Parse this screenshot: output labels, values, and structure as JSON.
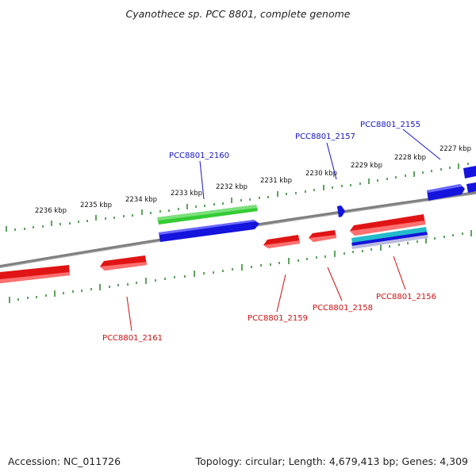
{
  "title": "Cyanothece sp. PCC 8801, complete genome",
  "footer": {
    "accession": "Accession: NC_011726",
    "summary": "Topology: circular; Length: 4,679,413 bp; Genes: 4,309"
  },
  "ruler": {
    "kbp_labels": [
      "2227 kbp",
      "2228 kbp",
      "2229 kbp",
      "2230 kbp",
      "2231 kbp",
      "2232 kbp",
      "2233 kbp",
      "2234 kbp",
      "2235 kbp",
      "2236 kbp"
    ]
  },
  "gene_labels": {
    "forward": [
      "PCC8801_2155",
      "PCC8801_2157",
      "PCC8801_2160"
    ],
    "reverse": [
      "PCC8801_2156",
      "PCC8801_2158",
      "PCC8801_2159",
      "PCC8801_2161"
    ]
  },
  "colors": {
    "forward_gene": "#1414dc",
    "reverse_gene": "#e01414",
    "rrna_gene": "#33cc33",
    "other_gene": "#22bbcc",
    "backbone": "#7a7a7a",
    "ticks": "#1a7a1a",
    "forward_label": "#1414c8",
    "reverse_label": "#cc1111"
  }
}
